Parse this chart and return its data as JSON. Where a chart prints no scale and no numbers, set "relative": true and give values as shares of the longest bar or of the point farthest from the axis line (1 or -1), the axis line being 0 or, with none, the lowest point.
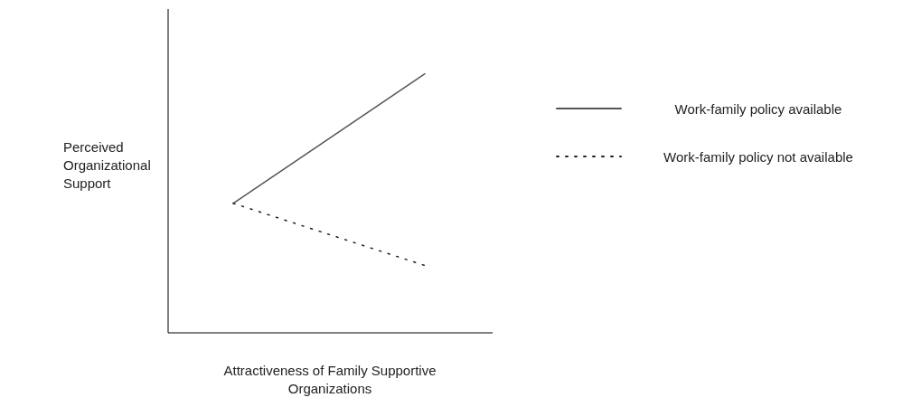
{
  "chart_data": {
    "type": "line",
    "relative": true,
    "xlabel": "Attractiveness of Family Supportive Organizations",
    "ylabel": "Perceived Organizational Support",
    "categories": [
      null,
      null
    ],
    "legend": "right",
    "series": [
      {
        "name": "Work-family policy available",
        "color": "#555555",
        "line_style": "solid",
        "values": [
          0.5,
          1
        ]
      },
      {
        "name": "Work-family policy not available",
        "color": "#222222",
        "line_style": "dotted",
        "values": [
          0.5,
          0.26
        ]
      }
    ]
  }
}
